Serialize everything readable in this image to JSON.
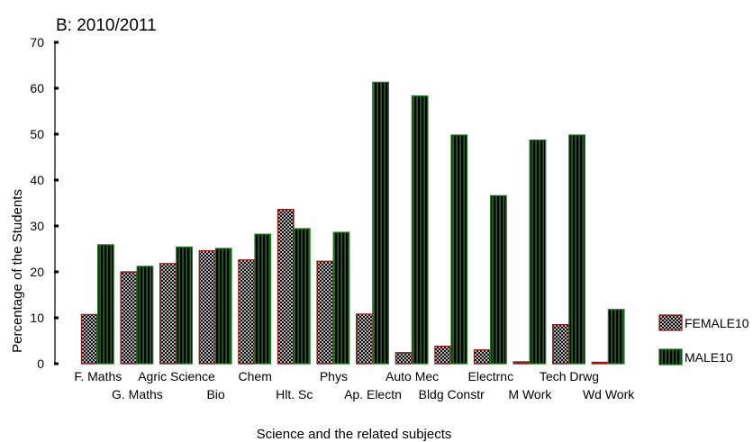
{
  "chart_data": {
    "type": "bar",
    "title": "B: 2010/2011",
    "xlabel": "Science and the related subjects",
    "ylabel": "Percentage of the Students",
    "ylim": [
      0,
      70
    ],
    "yticks": [
      0,
      10,
      20,
      30,
      40,
      50,
      60,
      70
    ],
    "grid": false,
    "legend_position": "right",
    "categories": [
      "F. Maths",
      "G. Maths",
      "Agric Science",
      "Bio",
      "Chem",
      "Hlt. Sc",
      "Phys",
      "Ap. Electn",
      "Auto Mec",
      "Bldg Constr",
      "Electrnc",
      "M Work",
      "Tech Drwg",
      "Wd Work"
    ],
    "series": [
      {
        "name": "FEMALE10",
        "pattern": "crosshatch",
        "edge_color": "#8b1a1a",
        "values": [
          10.7,
          20.0,
          21.8,
          24.6,
          22.6,
          33.6,
          22.3,
          10.8,
          2.4,
          3.8,
          3.0,
          0.4,
          8.5,
          0.3
        ]
      },
      {
        "name": "MALE10",
        "pattern": "vertical-stripes",
        "edge_color": "#1a7a1a",
        "values": [
          25.9,
          21.2,
          25.4,
          25.1,
          28.2,
          29.4,
          28.6,
          61.3,
          58.3,
          49.8,
          36.6,
          48.7,
          49.8,
          11.8
        ]
      }
    ]
  }
}
